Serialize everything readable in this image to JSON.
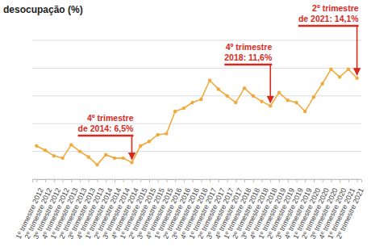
{
  "chart_data": {
    "type": "line",
    "title": "desocupação (%)",
    "categories": [
      "1º trimestre 2012",
      "2º trimestre 2012",
      "3º trimestre 2012",
      "4º trimestre 2012",
      "1º trimestre 2013",
      "2º trimestre 2013",
      "3º trimestre 2013",
      "4º trimestre 2013",
      "1º trimestre 2014",
      "2º trimestre 2014",
      "3º trimestre 2014",
      "4º trimestre 2014",
      "1º trimestre 2015",
      "2º trimestre 2015",
      "3º trimestre 2015",
      "4º trimestre 2015",
      "1º trimestre 2016",
      "2º trimestre 2016",
      "3º trimestre 2016",
      "4º trimestre 2016",
      "1º trimestre 2017",
      "2º trimestre 2017",
      "3º trimestre 2017",
      "4º trimestre 2017",
      "1º trimestre 2018",
      "2º trimestre 2018",
      "3º trimestre 2018",
      "4º trimestre 2018",
      "1º trimestre 2019",
      "2º trimestre 2019",
      "3º trimestre 2019",
      "4º trimestre 2019",
      "1º trimestre 2020",
      "2º trimestre 2020",
      "3º trimestre 2020",
      "4º trimestre 2020",
      "1º trimestre 2021",
      "2º trimestre 2021"
    ],
    "values": [
      8.0,
      7.6,
      7.1,
      6.9,
      8.1,
      7.5,
      7.0,
      6.3,
      7.2,
      6.9,
      6.9,
      6.5,
      8.0,
      8.4,
      9.0,
      9.1,
      11.1,
      11.4,
      11.9,
      12.2,
      13.9,
      13.1,
      12.5,
      11.9,
      13.2,
      12.5,
      12.0,
      11.6,
      12.8,
      12.1,
      11.9,
      11.1,
      12.4,
      13.6,
      14.9,
      14.2,
      14.9,
      14.1
    ],
    "color": "#f2a93b",
    "marker": "circle",
    "ylim": [
      5,
      17.5
    ],
    "yticks": [
      5,
      7.5,
      10,
      12.5,
      15,
      17.5
    ],
    "grid": true,
    "tick_labels": "x",
    "annotations": [
      {
        "lines": [
          "4º trimestre",
          "de 2014: 6,5%"
        ],
        "x": "4º trimestre 2014",
        "y": 6.5
      },
      {
        "lines": [
          "4º trimestre",
          "2018: 11,6%"
        ],
        "x": "4º trimestre 2018",
        "y": 11.6
      },
      {
        "lines": [
          "2º trimestre",
          "de 2021: 14,1%"
        ],
        "x": "2º trimestre 2021",
        "y": 14.1
      }
    ]
  }
}
